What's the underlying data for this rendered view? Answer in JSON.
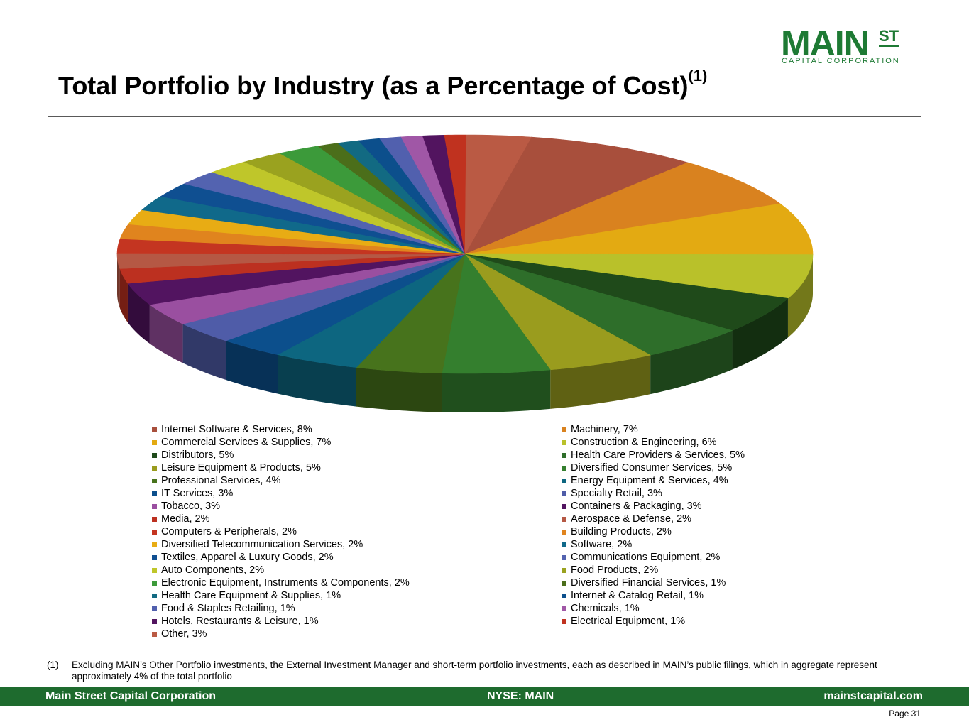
{
  "logo": {
    "main": "MAIN",
    "superscript": "ST",
    "subtitle": "CAPITAL CORPORATION"
  },
  "title": {
    "text": "Total Portfolio by Industry (as a Percentage of Cost)",
    "note_ref": "(1)"
  },
  "chart_data": {
    "type": "pie",
    "title": "Total Portfolio by Industry (as a Percentage of Cost)",
    "categories": [
      "Internet Software & Services",
      "Machinery",
      "Commercial Services & Supplies",
      "Construction & Engineering",
      "Distributors",
      "Health Care Providers & Services",
      "Leisure Equipment & Products",
      "Diversified Consumer Services",
      "Professional Services",
      "Energy Equipment & Services",
      "IT Services",
      "Specialty Retail",
      "Tobacco",
      "Containers & Packaging",
      "Media",
      "Aerospace & Defense",
      "Computers & Peripherals",
      "Building Products",
      "Diversified Telecommunication Services",
      "Software",
      "Textiles, Apparel & Luxury Goods",
      "Communications Equipment",
      "Auto Components",
      "Food Products",
      "Electronic Equipment, Instruments & Components",
      "Diversified Financial Services",
      "Health Care Equipment & Supplies",
      "Internet & Catalog Retail",
      "Food & Staples Retailing",
      "Chemicals",
      "Hotels, Restaurants & Leisure",
      "Electrical Equipment",
      "Other"
    ],
    "values": [
      8,
      7,
      7,
      6,
      5,
      5,
      5,
      5,
      4,
      4,
      3,
      3,
      3,
      3,
      2,
      2,
      2,
      2,
      2,
      2,
      2,
      2,
      2,
      2,
      2,
      1,
      1,
      1,
      1,
      1,
      1,
      1,
      3
    ],
    "legend_labels": [
      "Internet Software & Services, 8%",
      "Machinery, 7%",
      "Commercial Services & Supplies, 7%",
      "Construction & Engineering, 6%",
      "Distributors, 5%",
      "Health Care Providers & Services, 5%",
      "Leisure Equipment & Products, 5%",
      "Diversified Consumer Services, 5%",
      "Professional Services, 4%",
      "Energy Equipment & Services, 4%",
      "IT Services, 3%",
      "Specialty Retail, 3%",
      "Tobacco, 3%",
      "Containers & Packaging, 3%",
      "Media, 2%",
      "Aerospace & Defense, 2%",
      "Computers & Peripherals, 2%",
      "Building Products, 2%",
      "Diversified Telecommunication Services, 2%",
      "Software, 2%",
      "Textiles, Apparel & Luxury Goods, 2%",
      "Communications Equipment, 2%",
      "Auto Components, 2%",
      "Food Products, 2%",
      "Electronic Equipment, Instruments & Components, 2%",
      "Diversified Financial Services, 1%",
      "Health Care Equipment & Supplies, 1%",
      "Internet & Catalog Retail, 1%",
      "Food & Staples Retailing, 1%",
      "Chemicals, 1%",
      "Hotels, Restaurants & Leisure, 1%",
      "Electrical Equipment, 1%",
      "Other, 3%"
    ],
    "colors": [
      "#a84f3c",
      "#d9821f",
      "#e3aa12",
      "#b9c12a",
      "#1f4a1a",
      "#2e6e2a",
      "#9a9c1e",
      "#347f2e",
      "#47731c",
      "#0d6680",
      "#0c4f8c",
      "#4f5ca8",
      "#9a4fa0",
      "#521460",
      "#bc3020",
      "#b55844",
      "#c43521",
      "#e0841e",
      "#e8ac14",
      "#10698a",
      "#0f4f91",
      "#5363b0",
      "#bfc62a",
      "#9aa21f",
      "#3c9a3a",
      "#4b6e1a",
      "#126a82",
      "#0c4f8c",
      "#5160ae",
      "#a057a6",
      "#52145f",
      "#c0321f",
      "#ba5a44"
    ],
    "legend_placement": "bottom, two columns"
  },
  "footnote": {
    "number": "(1)",
    "text": "Excluding MAIN’s Other Portfolio investments, the External Investment Manager and short-term portfolio investments, each as described in MAIN’s public filings, which in aggregate represent approximately 4% of the total portfolio"
  },
  "footer": {
    "left": "Main Street Capital Corporation",
    "center": "NYSE: MAIN",
    "right": "mainstcapital.com"
  },
  "page_label": "Page  31"
}
